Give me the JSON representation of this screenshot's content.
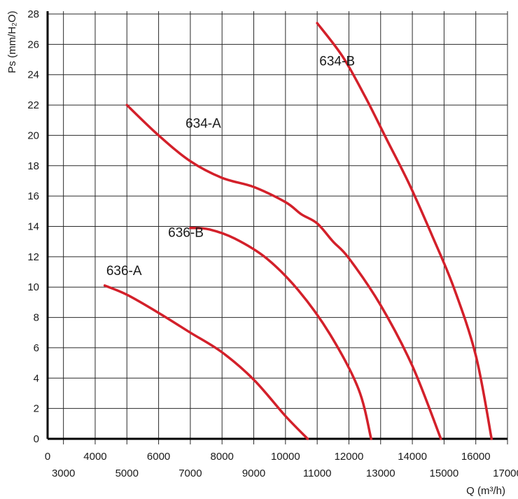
{
  "chart_data": {
    "type": "line",
    "title": "",
    "ylabel": "Ps (mm/H₂O)",
    "xlabel": "Q (m³/h)",
    "ylim": [
      0,
      28
    ],
    "xlim": [
      2500,
      17000
    ],
    "grid": true,
    "y_ticks": [
      "0",
      "2",
      "4",
      "6",
      "8",
      "10",
      "12",
      "14",
      "16",
      "18",
      "20",
      "22",
      "24",
      "26",
      "28"
    ],
    "x_ticks_upper": [
      "0",
      "4000",
      "6000",
      "8000",
      "10000",
      "12000",
      "14000",
      "16000"
    ],
    "x_ticks_lower": [
      "3000",
      "5000",
      "7000",
      "9000",
      "11000",
      "13000",
      "15000",
      "17000"
    ],
    "series": [
      {
        "name": "636-A",
        "x": [
          4300,
          5000,
          6000,
          7000,
          8000,
          9000,
          10000,
          10700
        ],
        "y": [
          10.1,
          9.5,
          8.3,
          7.0,
          5.7,
          3.9,
          1.5,
          0
        ]
      },
      {
        "name": "636-B",
        "x": [
          7000,
          7600,
          8400,
          9400,
          10400,
          11400,
          12300,
          12700
        ],
        "y": [
          13.9,
          13.8,
          13.2,
          11.9,
          9.8,
          6.9,
          3.3,
          0
        ]
      },
      {
        "name": "634-A",
        "x": [
          5000,
          6000,
          7000,
          8000,
          9000,
          10000,
          10500,
          11000,
          11500,
          12000,
          13000,
          14000,
          14900
        ],
        "y": [
          22.0,
          20.0,
          18.3,
          17.2,
          16.6,
          15.6,
          14.8,
          14.2,
          13.0,
          11.9,
          8.8,
          4.8,
          0
        ]
      },
      {
        "name": "634-B",
        "x": [
          11000,
          11800,
          12500,
          13200,
          13900,
          14600,
          15300,
          16000,
          16500
        ],
        "y": [
          27.4,
          25.2,
          22.6,
          19.7,
          16.8,
          13.5,
          10.0,
          5.5,
          0
        ]
      }
    ],
    "curve_labels": [
      {
        "text": "634-B",
        "x": 11070,
        "y": 24.6
      },
      {
        "text": "634-A",
        "x": 6850,
        "y": 20.5
      },
      {
        "text": "636-B",
        "x": 6300,
        "y": 13.3
      },
      {
        "text": "636-A",
        "x": 4350,
        "y": 10.8
      }
    ]
  }
}
